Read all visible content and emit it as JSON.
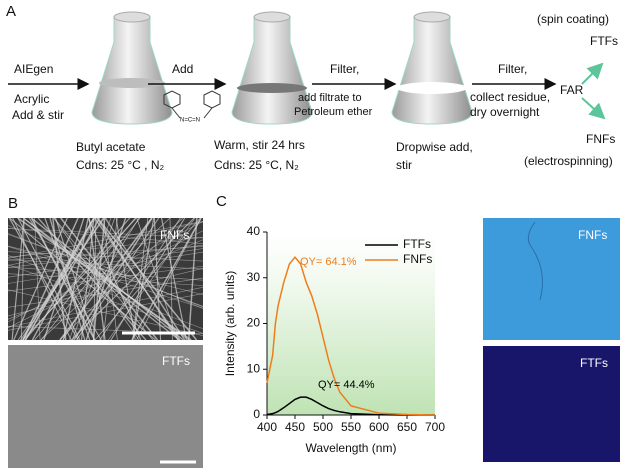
{
  "panel_a": {
    "label": "A",
    "step1": {
      "above": "AIEgen",
      "below1": "Acrylic",
      "below2": "Add & stir"
    },
    "flask1": {
      "line1": "Butyl acetate",
      "line2": "Cdns: 25 °C , N₂"
    },
    "step2": {
      "above": "Add",
      "molecule": "N=C=N"
    },
    "flask2": {
      "line1": "Warm, stir 24 hrs",
      "line2": "Cdns: 25 °C, N₂"
    },
    "step3": {
      "above": "Filter,",
      "below1": "add filtrate to",
      "below2": "Petroleum ether"
    },
    "flask3": {
      "line1": "Dropwise add,",
      "line2": "stir"
    },
    "step4": {
      "above": "Filter,",
      "below1": "collect residue,",
      "below2": "dry overnight"
    },
    "product": "FAR",
    "top_branch": {
      "line1": "(spin coating)",
      "line2": "FTFs"
    },
    "bottom_branch": {
      "line1": "FNFs",
      "line2": "(electrospinning)"
    }
  },
  "panel_b": {
    "label": "B",
    "top_image": "FNFs",
    "bottom_image": "FTFs"
  },
  "panel_c_images": {
    "top_image": "FNFs",
    "bottom_image": "FTFs"
  },
  "chart_data": {
    "type": "line",
    "label": "C",
    "x_label": "Wavelength (nm)",
    "y_label": "Intensity (arb. units)",
    "x": [
      400,
      410,
      415,
      420,
      430,
      440,
      450,
      460,
      470,
      480,
      490,
      500,
      510,
      520,
      530,
      550,
      600,
      650,
      700
    ],
    "series": [
      {
        "name": "FTFs",
        "color": "#000000",
        "values": [
          0.1,
          0.3,
          0.5,
          0.8,
          1.6,
          2.5,
          3.4,
          3.9,
          3.9,
          3.4,
          2.7,
          2.0,
          1.4,
          1.0,
          0.7,
          0.3,
          0.05,
          0,
          0
        ]
      },
      {
        "name": "FNFs",
        "color": "#f07d1a",
        "values": [
          7,
          13,
          20,
          24,
          29,
          33,
          34.5,
          33,
          29,
          26,
          22,
          17,
          12,
          8,
          5,
          2,
          0.4,
          0.1,
          0
        ]
      }
    ],
    "annotations": [
      {
        "text": "QY= 64.1%",
        "color": "#f07d1a"
      },
      {
        "text": "QY= 44.4%",
        "color": "#000000"
      }
    ],
    "xlim": [
      400,
      700
    ],
    "xticks": [
      400,
      450,
      500,
      550,
      600,
      650,
      700
    ],
    "ylim": [
      0,
      40
    ],
    "yticks": [
      0,
      10,
      20,
      30,
      40
    ]
  }
}
